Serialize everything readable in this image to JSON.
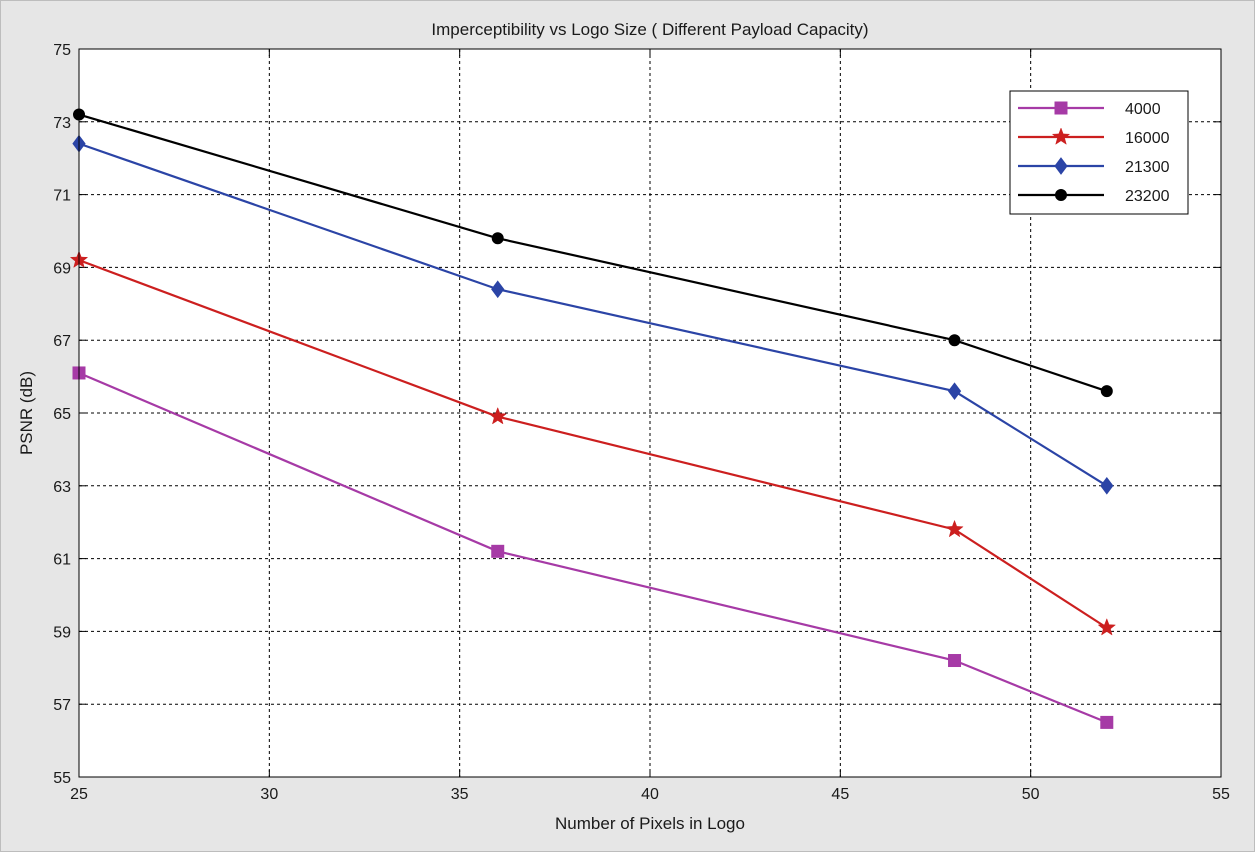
{
  "chart_data": {
    "type": "line",
    "title": "Imperceptibility vs Logo Size ( Different Payload Capacity)",
    "xlabel": "Number of Pixels in Logo",
    "ylabel": "PSNR (dB)",
    "xlim": [
      25,
      55
    ],
    "ylim": [
      55,
      75
    ],
    "xticks": [
      25,
      30,
      35,
      40,
      45,
      50,
      55
    ],
    "yticks": [
      55,
      57,
      59,
      61,
      63,
      65,
      67,
      69,
      71,
      73,
      75
    ],
    "grid": true,
    "legend_position": "top-right",
    "x": [
      25,
      36,
      48,
      52
    ],
    "series": [
      {
        "name": "4000",
        "color": "#a63aa6",
        "marker": "square",
        "values": [
          66.1,
          61.2,
          58.2,
          56.5
        ]
      },
      {
        "name": "16000",
        "color": "#cc1f1f",
        "marker": "star",
        "values": [
          69.2,
          64.9,
          61.8,
          59.1
        ]
      },
      {
        "name": "21300",
        "color": "#2b44a6",
        "marker": "diamond",
        "values": [
          72.4,
          68.4,
          65.6,
          63.0
        ]
      },
      {
        "name": "23200",
        "color": "#000000",
        "marker": "circle",
        "values": [
          73.2,
          69.8,
          67.0,
          65.6
        ]
      }
    ]
  }
}
